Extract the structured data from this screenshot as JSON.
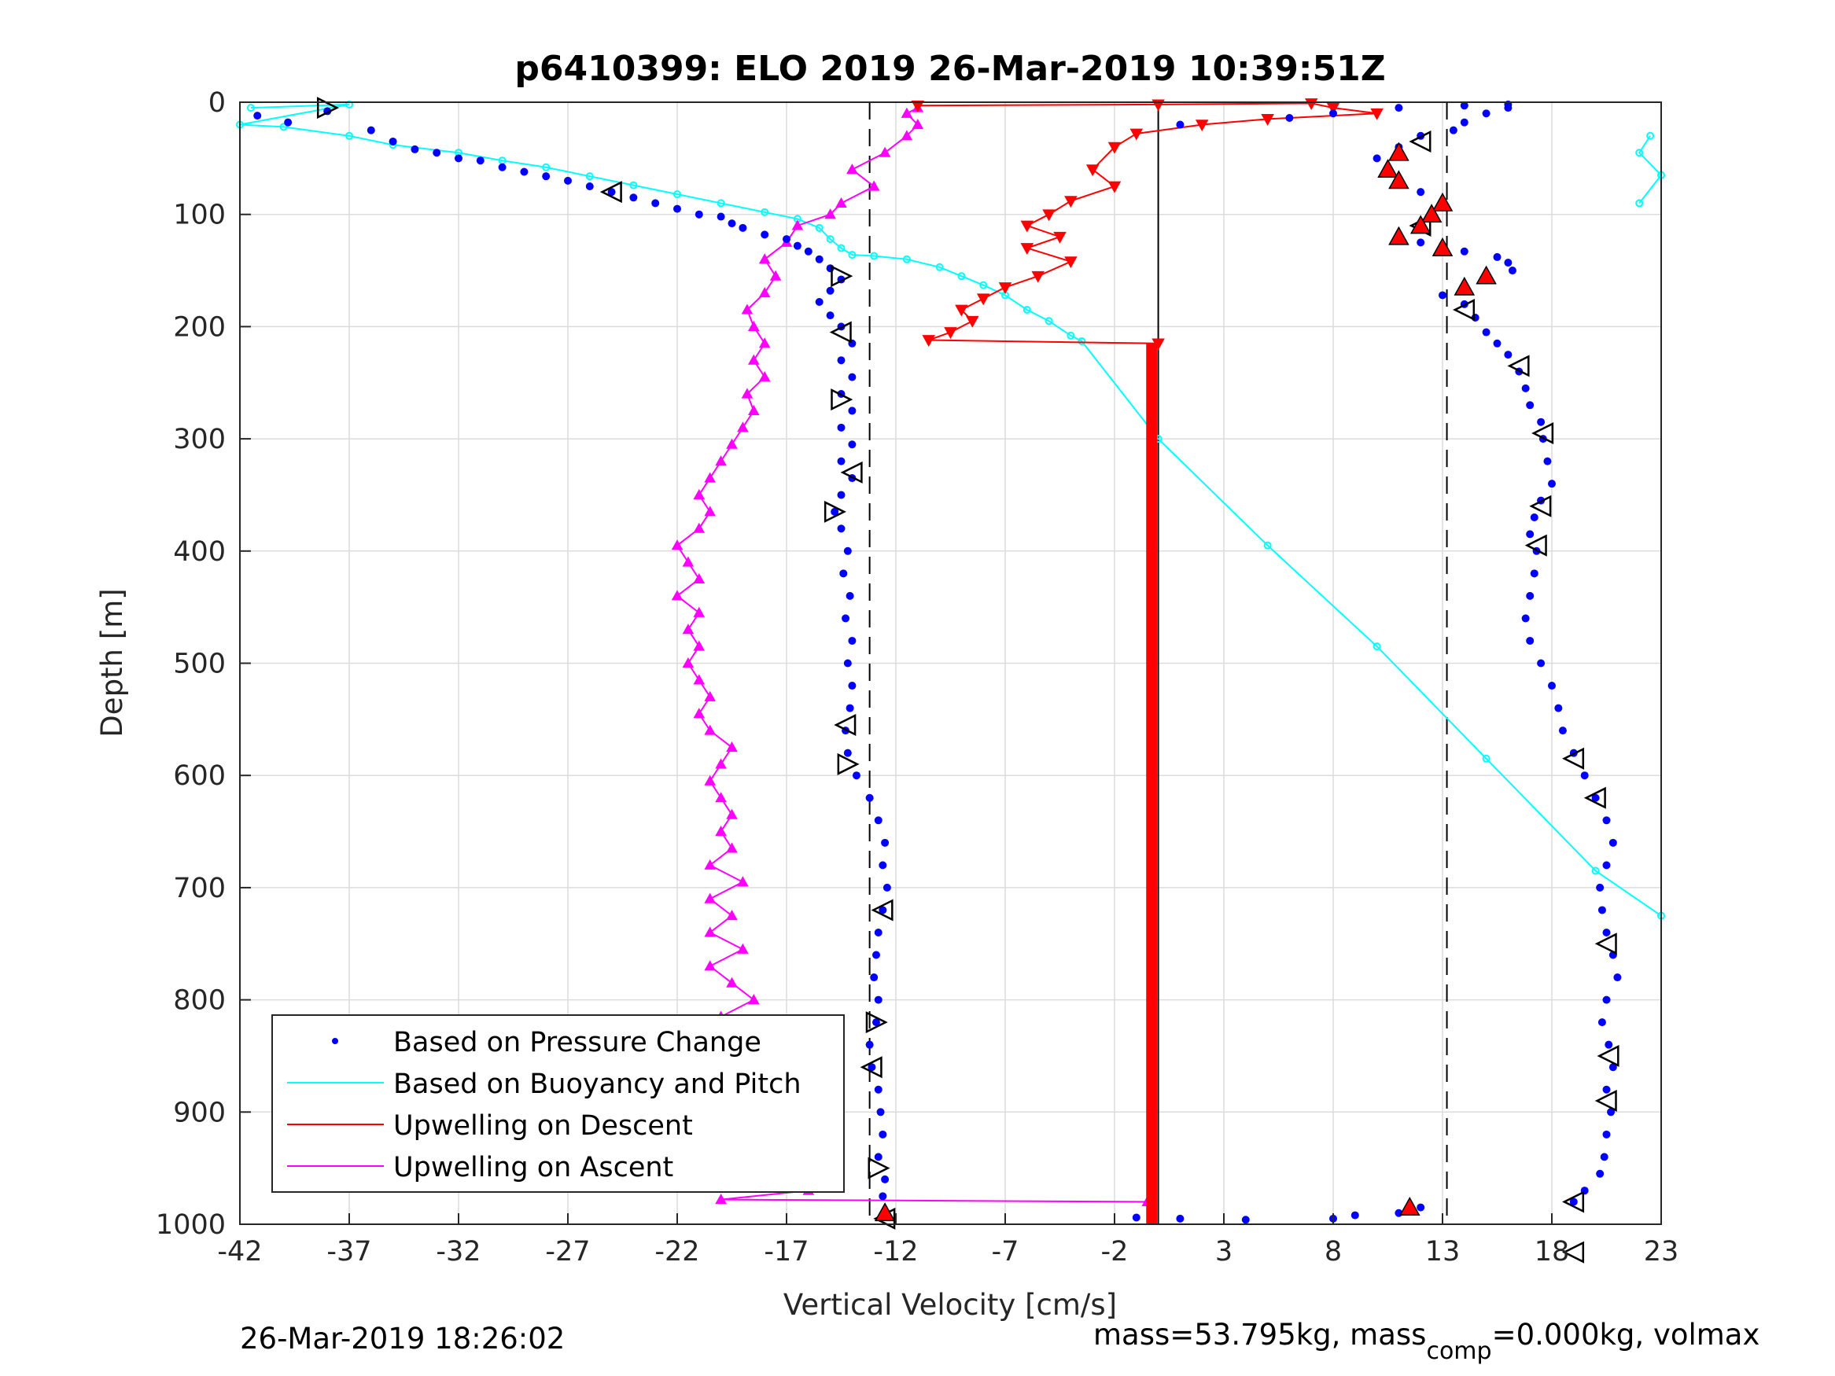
{
  "chart_data": {
    "type": "scatter",
    "title": "p6410399: ELO 2019 26-Mar-2019 10:39:51Z",
    "xlabel": "Vertical Velocity [cm/s]",
    "ylabel": "Depth [m]",
    "xlim": [
      -42,
      23
    ],
    "ylim": [
      0,
      1000
    ],
    "y_reversed": true,
    "grid": true,
    "legend_position": "bottom-left",
    "x_ticks": [
      "-42",
      "-37",
      "-32",
      "-27",
      "-22",
      "-17",
      "-12",
      "-7",
      "-2",
      "3",
      "8",
      "13",
      "18",
      "23"
    ],
    "y_ticks": [
      "0",
      "100",
      "200",
      "300",
      "400",
      "500",
      "600",
      "700",
      "800",
      "900",
      "1000"
    ],
    "reference_lines": {
      "dashed_x": [
        -13.2,
        13.2
      ],
      "solid_x": [
        0
      ]
    },
    "series": [
      {
        "name": "Based on Pressure Change",
        "color": "#0000ff",
        "marker": "dot",
        "points_descent": [
          [
            -41.2,
            12
          ],
          [
            -39.8,
            18
          ],
          [
            -38,
            8
          ],
          [
            -36,
            25
          ],
          [
            -35,
            35
          ],
          [
            -34,
            42
          ],
          [
            -33,
            45
          ],
          [
            -32,
            50
          ],
          [
            -31,
            52
          ],
          [
            -30,
            58
          ],
          [
            -29,
            62
          ],
          [
            -28,
            66
          ],
          [
            -27,
            70
          ],
          [
            -26,
            75
          ],
          [
            -25,
            80
          ],
          [
            -24,
            85
          ],
          [
            -23,
            90
          ],
          [
            -22,
            95
          ],
          [
            -21,
            100
          ],
          [
            -20,
            102
          ],
          [
            -19.5,
            108
          ],
          [
            -19,
            112
          ],
          [
            -18,
            118
          ],
          [
            -17,
            122
          ],
          [
            -16.5,
            128
          ],
          [
            -16,
            133
          ],
          [
            -15.5,
            140
          ],
          [
            -15,
            148
          ],
          [
            -14.5,
            158
          ],
          [
            -15,
            168
          ],
          [
            -15.5,
            178
          ],
          [
            -15,
            190
          ],
          [
            -14.5,
            200
          ],
          [
            -14,
            215
          ],
          [
            -14.5,
            230
          ],
          [
            -14,
            245
          ],
          [
            -14.5,
            260
          ],
          [
            -14,
            275
          ],
          [
            -14.5,
            290
          ],
          [
            -14,
            305
          ],
          [
            -14.5,
            320
          ],
          [
            -14,
            335
          ],
          [
            -14.5,
            350
          ],
          [
            -14.8,
            365
          ],
          [
            -14.5,
            380
          ],
          [
            -14.2,
            400
          ],
          [
            -14.4,
            420
          ],
          [
            -14.1,
            440
          ],
          [
            -14.3,
            460
          ],
          [
            -14,
            480
          ],
          [
            -14.2,
            500
          ],
          [
            -14,
            520
          ],
          [
            -14.1,
            540
          ],
          [
            -14.3,
            560
          ],
          [
            -14.2,
            580
          ],
          [
            -13.8,
            600
          ],
          [
            -13.2,
            620
          ],
          [
            -12.8,
            640
          ],
          [
            -12.5,
            660
          ],
          [
            -12.6,
            680
          ],
          [
            -12.4,
            700
          ],
          [
            -12.6,
            720
          ],
          [
            -12.8,
            740
          ],
          [
            -12.9,
            760
          ],
          [
            -13,
            780
          ],
          [
            -12.8,
            800
          ],
          [
            -12.9,
            820
          ],
          [
            -13.2,
            840
          ],
          [
            -13.1,
            860
          ],
          [
            -12.8,
            880
          ],
          [
            -12.7,
            900
          ],
          [
            -12.6,
            920
          ],
          [
            -12.8,
            940
          ],
          [
            -12.5,
            960
          ],
          [
            -12.6,
            975
          ],
          [
            -12.5,
            990
          ]
        ],
        "points_ascent": [
          [
            12,
            985
          ],
          [
            11,
            990
          ],
          [
            9,
            992
          ],
          [
            8,
            995
          ],
          [
            4,
            996
          ],
          [
            1,
            995
          ],
          [
            -1,
            994
          ],
          [
            1,
            20
          ],
          [
            6,
            14
          ],
          [
            8,
            10
          ],
          [
            11,
            5
          ],
          [
            14,
            3
          ],
          [
            16,
            2
          ],
          [
            16,
            5
          ],
          [
            15,
            10
          ],
          [
            14,
            18
          ],
          [
            13.5,
            25
          ],
          [
            12,
            30
          ],
          [
            11,
            40
          ],
          [
            10,
            50
          ],
          [
            10.5,
            60
          ],
          [
            11,
            70
          ],
          [
            12,
            80
          ],
          [
            13,
            90
          ],
          [
            12.5,
            100
          ],
          [
            12,
            110
          ],
          [
            11,
            118
          ],
          [
            12,
            125
          ],
          [
            13,
            130
          ],
          [
            14,
            133
          ],
          [
            15.5,
            138
          ],
          [
            16,
            143
          ],
          [
            16.2,
            150
          ],
          [
            15,
            158
          ],
          [
            14,
            165
          ],
          [
            13,
            172
          ],
          [
            14,
            180
          ],
          [
            14.5,
            192
          ],
          [
            15,
            205
          ],
          [
            15.5,
            215
          ],
          [
            16,
            225
          ],
          [
            16.5,
            240
          ],
          [
            16.8,
            255
          ],
          [
            17,
            270
          ],
          [
            17.5,
            285
          ],
          [
            17.6,
            300
          ],
          [
            17.8,
            320
          ],
          [
            18,
            340
          ],
          [
            17.5,
            355
          ],
          [
            17.2,
            370
          ],
          [
            17,
            385
          ],
          [
            17.3,
            400
          ],
          [
            17.2,
            420
          ],
          [
            17,
            440
          ],
          [
            16.8,
            460
          ],
          [
            17,
            480
          ],
          [
            17.5,
            500
          ],
          [
            18,
            520
          ],
          [
            18.3,
            540
          ],
          [
            18.5,
            560
          ],
          [
            19,
            580
          ],
          [
            19.5,
            600
          ],
          [
            20,
            620
          ],
          [
            20.5,
            640
          ],
          [
            20.8,
            660
          ],
          [
            20.5,
            680
          ],
          [
            20.2,
            700
          ],
          [
            20.3,
            720
          ],
          [
            20.5,
            740
          ],
          [
            20.8,
            760
          ],
          [
            21,
            780
          ],
          [
            20.5,
            800
          ],
          [
            20.3,
            820
          ],
          [
            20.6,
            840
          ],
          [
            20.8,
            860
          ],
          [
            20.5,
            880
          ],
          [
            20.7,
            900
          ],
          [
            20.5,
            920
          ],
          [
            20.4,
            940
          ],
          [
            20.2,
            955
          ],
          [
            19.5,
            970
          ],
          [
            19,
            980
          ]
        ]
      },
      {
        "name": "Based on Buoyancy and Pitch",
        "color": "#00ffff",
        "marker": "open-circle",
        "line_points": [
          [
            -41.5,
            5
          ],
          [
            -37,
            2
          ],
          [
            -42,
            20
          ],
          [
            -40,
            22
          ],
          [
            -37,
            30
          ],
          [
            -35,
            38
          ],
          [
            -32,
            45
          ],
          [
            -30,
            52
          ],
          [
            -28,
            58
          ],
          [
            -26,
            66
          ],
          [
            -24,
            74
          ],
          [
            -22,
            82
          ],
          [
            -20,
            90
          ],
          [
            -18,
            98
          ],
          [
            -16.5,
            104
          ],
          [
            -15.5,
            112
          ],
          [
            -15,
            122
          ],
          [
            -14.5,
            130
          ],
          [
            -14,
            136
          ],
          [
            -13,
            137
          ],
          [
            -11.5,
            140
          ],
          [
            -10,
            147
          ],
          [
            -9,
            155
          ],
          [
            -8,
            163
          ],
          [
            -7,
            172
          ],
          [
            -6,
            185
          ],
          [
            -5,
            195
          ],
          [
            -4,
            208
          ],
          [
            -3.5,
            213
          ],
          [
            0,
            300
          ],
          [
            5,
            395
          ],
          [
            10,
            485
          ],
          [
            15,
            585
          ],
          [
            20,
            685
          ],
          [
            23,
            725
          ]
        ],
        "surface_points": [
          [
            22.5,
            30
          ],
          [
            22,
            45
          ],
          [
            23,
            65
          ],
          [
            22,
            90
          ]
        ]
      },
      {
        "name": "Upwelling on Descent",
        "color": "#ff0000",
        "marker": "down-triangle",
        "line_points": [
          [
            -11,
            3
          ],
          [
            0,
            2
          ],
          [
            7,
            1
          ],
          [
            8,
            5
          ],
          [
            10,
            10
          ],
          [
            5,
            15
          ],
          [
            2,
            20
          ],
          [
            -1,
            28
          ],
          [
            -2,
            40
          ],
          [
            -3,
            60
          ],
          [
            -2,
            75
          ],
          [
            -4,
            88
          ],
          [
            -5,
            100
          ],
          [
            -6,
            110
          ],
          [
            -4.5,
            120
          ],
          [
            -6,
            130
          ],
          [
            -4,
            142
          ],
          [
            -5.5,
            155
          ],
          [
            -7,
            165
          ],
          [
            -8,
            175
          ],
          [
            -9,
            185
          ],
          [
            -8.5,
            195
          ],
          [
            -9.5,
            205
          ],
          [
            -10.5,
            212
          ],
          [
            0,
            215
          ]
        ],
        "constant_x": -0.3,
        "constant_depth_range": [
          215,
          1000
        ]
      },
      {
        "name": "Upwelling on Ascent",
        "color": "#ff00ff",
        "marker": "up-triangle",
        "line_points": [
          [
            -0.5,
            980
          ],
          [
            -20,
            978
          ],
          [
            -16,
            970
          ],
          [
            -18,
            960
          ],
          [
            -19,
            950
          ],
          [
            -18.5,
            935
          ],
          [
            -19,
            920
          ],
          [
            -18,
            905
          ],
          [
            -19.5,
            890
          ],
          [
            -18.8,
            875
          ],
          [
            -19.2,
            860
          ],
          [
            -18,
            845
          ],
          [
            -19,
            830
          ],
          [
            -20,
            815
          ],
          [
            -18.5,
            800
          ],
          [
            -19.5,
            785
          ],
          [
            -20.5,
            770
          ],
          [
            -19,
            755
          ],
          [
            -20.5,
            740
          ],
          [
            -19.5,
            725
          ],
          [
            -20.5,
            710
          ],
          [
            -19,
            695
          ],
          [
            -20.5,
            680
          ],
          [
            -19.5,
            665
          ],
          [
            -20,
            650
          ],
          [
            -19.5,
            635
          ],
          [
            -20,
            620
          ],
          [
            -20.5,
            605
          ],
          [
            -20,
            590
          ],
          [
            -19.5,
            575
          ],
          [
            -20.5,
            560
          ],
          [
            -21,
            545
          ],
          [
            -20.5,
            530
          ],
          [
            -21,
            515
          ],
          [
            -21.5,
            500
          ],
          [
            -21,
            485
          ],
          [
            -21.5,
            470
          ],
          [
            -21,
            455
          ],
          [
            -22,
            440
          ],
          [
            -21,
            425
          ],
          [
            -21.5,
            410
          ],
          [
            -22,
            395
          ],
          [
            -21,
            380
          ],
          [
            -20.5,
            365
          ],
          [
            -21,
            350
          ],
          [
            -20.5,
            335
          ],
          [
            -20,
            320
          ],
          [
            -19.5,
            305
          ],
          [
            -19,
            290
          ],
          [
            -18.5,
            275
          ],
          [
            -18.8,
            260
          ],
          [
            -18,
            245
          ],
          [
            -18.5,
            230
          ],
          [
            -18,
            215
          ],
          [
            -18.5,
            200
          ],
          [
            -18.8,
            185
          ],
          [
            -18,
            170
          ],
          [
            -17.5,
            155
          ],
          [
            -18,
            140
          ],
          [
            -17,
            125
          ],
          [
            -16.5,
            110
          ],
          [
            -15,
            100
          ],
          [
            -14.5,
            90
          ],
          [
            -13,
            75
          ],
          [
            -14,
            60
          ],
          [
            -12.5,
            45
          ],
          [
            -11.5,
            30
          ],
          [
            -11,
            20
          ],
          [
            -11.5,
            10
          ],
          [
            -11,
            5
          ]
        ]
      }
    ],
    "annotations": {
      "open_triangle_markers_depths": [
        5,
        80,
        155,
        205,
        265,
        330,
        365,
        555,
        590,
        720,
        820,
        860,
        950,
        995
      ],
      "red_filled_triangle_depths": [
        45,
        60,
        70,
        90,
        100,
        110,
        120,
        130,
        155,
        165,
        985,
        990
      ]
    }
  },
  "legend": {
    "items": [
      {
        "label": "Based on Pressure Change",
        "color": "#0000ff",
        "style": "dot"
      },
      {
        "label": "Based on Buoyancy and Pitch",
        "color": "#00ffff",
        "style": "line"
      },
      {
        "label": "Upwelling on Descent",
        "color": "#ff0000",
        "style": "line"
      },
      {
        "label": "Upwelling on Ascent",
        "color": "#ff00ff",
        "style": "line"
      }
    ]
  },
  "footer": {
    "timestamp": "26-Mar-2019 18:26:02",
    "mass_text_main": "mass=53.795kg, mass",
    "mass_text_sub": "comp",
    "mass_text_tail": "=0.000kg, volmax"
  }
}
